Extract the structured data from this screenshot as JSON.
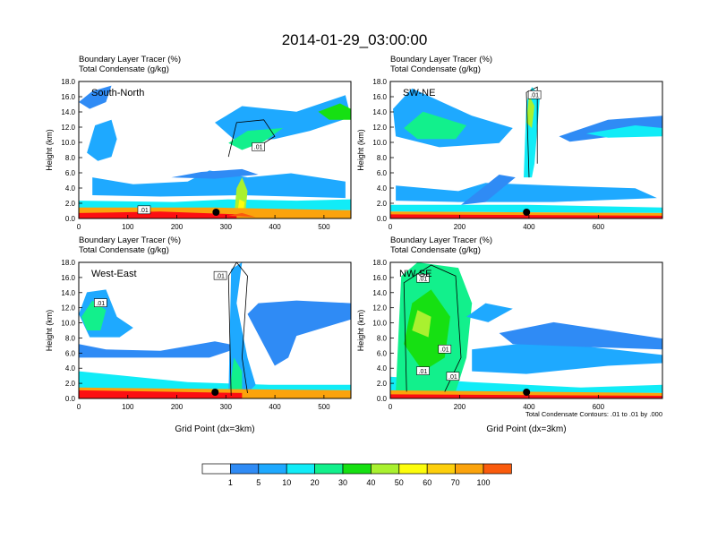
{
  "title": "2014-01-29_03:00:00",
  "field_labels": [
    "Boundary Layer Tracer   (%)",
    "Total Condensate   (g/kg)"
  ],
  "ylabel": "Height (km)",
  "xlabel": "Grid Point (dx=3km)",
  "contour_note": "Total Condensate Contours: .01 to .01 by .000",
  "contour_label": ".01",
  "colorbar": {
    "levels": [
      "1",
      "5",
      "10",
      "20",
      "30",
      "40",
      "50",
      "60",
      "70",
      "100"
    ],
    "colors": [
      "#ffffff",
      "#2f8bf5",
      "#1ea9ff",
      "#11ecf7",
      "#12f08c",
      "#16e012",
      "#a9f12f",
      "#fdfd0c",
      "#fdcf0c",
      "#fba30c",
      "#fa5b0d",
      "#fc0f12"
    ]
  },
  "chart_data": [
    {
      "type": "heatmap",
      "cross_section": "South-North",
      "x_ticks": [
        0,
        100,
        200,
        300,
        400,
        500
      ],
      "xlim": [
        0,
        555
      ],
      "y_ticks": [
        "0.0",
        "2.0",
        "4.0",
        "6.0",
        "8.0",
        "10.0",
        "12.0",
        "14.0",
        "16.0",
        "18.0"
      ],
      "ylim": [
        0,
        18
      ],
      "marker_x": 280,
      "contour_labels_shown": 2
    },
    {
      "type": "heatmap",
      "cross_section": "SW-NE",
      "x_ticks": [
        0,
        200,
        400,
        600
      ],
      "xlim": [
        0,
        785
      ],
      "y_ticks": [
        "0.0",
        "2.0",
        "4.0",
        "6.0",
        "8.0",
        "10.0",
        "12.0",
        "14.0",
        "16.0",
        "18.0"
      ],
      "ylim": [
        0,
        18
      ],
      "marker_x": 393,
      "contour_labels_shown": 1
    },
    {
      "type": "heatmap",
      "cross_section": "West-East",
      "x_ticks": [
        0,
        100,
        200,
        300,
        400,
        500
      ],
      "xlim": [
        0,
        555
      ],
      "y_ticks": [
        "0.0",
        "2.0",
        "4.0",
        "6.0",
        "8.0",
        "10.0",
        "12.0",
        "14.0",
        "16.0",
        "18.0"
      ],
      "ylim": [
        0,
        18
      ],
      "marker_x": 278,
      "contour_labels_shown": 2
    },
    {
      "type": "heatmap",
      "cross_section": "NW-SE",
      "x_ticks": [
        0,
        200,
        400,
        600
      ],
      "xlim": [
        0,
        785
      ],
      "y_ticks": [
        "0.0",
        "2.0",
        "4.0",
        "6.0",
        "8.0",
        "10.0",
        "12.0",
        "14.0",
        "16.0",
        "18.0"
      ],
      "ylim": [
        0,
        18
      ],
      "marker_x": 393,
      "contour_labels_shown": 4
    }
  ]
}
